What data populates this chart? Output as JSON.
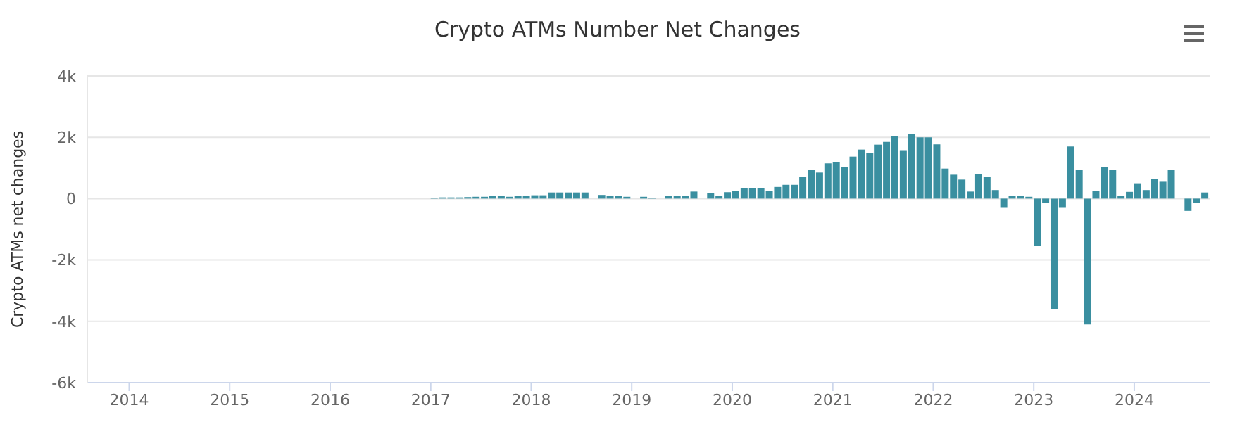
{
  "chart_data": {
    "type": "bar",
    "title": "Crypto ATMs Number Net Changes",
    "ylabel": "Crypto ATMs net changes",
    "x": [
      "2017-01",
      "2017-02",
      "2017-03",
      "2017-04",
      "2017-05",
      "2017-06",
      "2017-07",
      "2017-08",
      "2017-09",
      "2017-10",
      "2017-11",
      "2017-12",
      "2018-01",
      "2018-02",
      "2018-03",
      "2018-04",
      "2018-05",
      "2018-06",
      "2018-07",
      "2018-08",
      "2018-09",
      "2018-10",
      "2018-11",
      "2018-12",
      "2019-01",
      "2019-02",
      "2019-03",
      "2019-04",
      "2019-05",
      "2019-06",
      "2019-07",
      "2019-08",
      "2019-09",
      "2019-10",
      "2019-11",
      "2019-12",
      "2020-01",
      "2020-02",
      "2020-03",
      "2020-04",
      "2020-05",
      "2020-06",
      "2020-07",
      "2020-08",
      "2020-09",
      "2020-10",
      "2020-11",
      "2020-12",
      "2021-01",
      "2021-02",
      "2021-03",
      "2021-04",
      "2021-05",
      "2021-06",
      "2021-07",
      "2021-08",
      "2021-09",
      "2021-10",
      "2021-11",
      "2021-12",
      "2022-01",
      "2022-02",
      "2022-03",
      "2022-04",
      "2022-05",
      "2022-06",
      "2022-07",
      "2022-08",
      "2022-09",
      "2022-10",
      "2022-11",
      "2022-12",
      "2023-01",
      "2023-02",
      "2023-03",
      "2023-04",
      "2023-05",
      "2023-06",
      "2023-07",
      "2023-08",
      "2023-09",
      "2023-10",
      "2023-11",
      "2023-12",
      "2024-01",
      "2024-02",
      "2024-03",
      "2024-04",
      "2024-05",
      "2024-06",
      "2024-07",
      "2024-08",
      "2024-09"
    ],
    "values": [
      30,
      40,
      40,
      40,
      50,
      60,
      60,
      80,
      100,
      60,
      100,
      100,
      110,
      110,
      200,
      200,
      200,
      200,
      200,
      null,
      120,
      100,
      100,
      60,
      null,
      60,
      30,
      null,
      100,
      80,
      80,
      230,
      0,
      170,
      100,
      210,
      260,
      330,
      330,
      330,
      240,
      380,
      450,
      450,
      700,
      950,
      850,
      1150,
      1200,
      1020,
      1370,
      1600,
      1480,
      1760,
      1850,
      2030,
      1580,
      2100,
      2000,
      2000,
      1770,
      980,
      780,
      620,
      230,
      800,
      700,
      280,
      -300,
      80,
      100,
      60,
      -1550,
      -150,
      -3600,
      -300,
      1700,
      950,
      -4100,
      250,
      1020,
      950,
      100,
      220,
      500,
      280,
      650,
      550,
      950,
      null,
      -400,
      -150,
      200
    ],
    "color": "#3a8fa0",
    "xlim": [
      "2013-08",
      "2024-10"
    ],
    "xticks": [
      "2014",
      "2015",
      "2016",
      "2017",
      "2018",
      "2019",
      "2020",
      "2021",
      "2022",
      "2023",
      "2024"
    ],
    "ylim": [
      -6000,
      4000
    ],
    "yticks": [
      {
        "value": -6000,
        "label": "-6k"
      },
      {
        "value": -4000,
        "label": "-4k"
      },
      {
        "value": -2000,
        "label": "-2k"
      },
      {
        "value": 0,
        "label": "0"
      },
      {
        "value": 2000,
        "label": "2k"
      },
      {
        "value": 4000,
        "label": "4k"
      }
    ],
    "grid": "y",
    "legend": false
  }
}
